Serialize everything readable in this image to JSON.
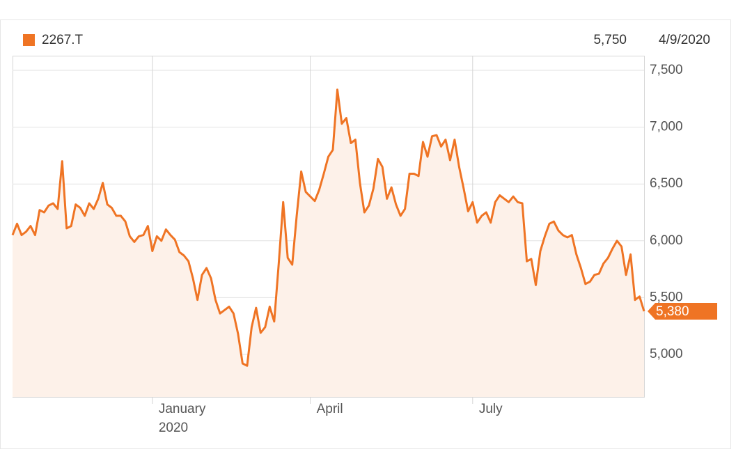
{
  "chart_data": {
    "type": "area",
    "series": [
      {
        "name": "2267.T",
        "color": "#ef7424",
        "fill": "#fdf1e9",
        "values": [
          6050,
          6150,
          6050,
          6080,
          6130,
          6050,
          6270,
          6250,
          6310,
          6330,
          6280,
          6700,
          6110,
          6130,
          6320,
          6290,
          6220,
          6330,
          6280,
          6370,
          6510,
          6320,
          6290,
          6220,
          6220,
          6170,
          6040,
          5990,
          6040,
          6050,
          6130,
          5910,
          6040,
          6000,
          6100,
          6050,
          6010,
          5900,
          5870,
          5820,
          5670,
          5480,
          5700,
          5760,
          5670,
          5480,
          5360,
          5390,
          5420,
          5360,
          5180,
          4920,
          4900,
          5240,
          5410,
          5190,
          5240,
          5420,
          5290,
          5790,
          6340,
          5850,
          5790,
          6220,
          6610,
          6430,
          6390,
          6350,
          6450,
          6590,
          6740,
          6800,
          7330,
          7030,
          7080,
          6860,
          6890,
          6510,
          6250,
          6310,
          6460,
          6720,
          6650,
          6370,
          6470,
          6320,
          6220,
          6280,
          6590,
          6590,
          6570,
          6870,
          6740,
          6920,
          6930,
          6830,
          6890,
          6710,
          6890,
          6650,
          6460,
          6260,
          6340,
          6160,
          6220,
          6250,
          6160,
          6340,
          6400,
          6370,
          6340,
          6390,
          6340,
          6330,
          5820,
          5840,
          5610,
          5910,
          6040,
          6150,
          6170,
          6090,
          6050,
          6030,
          6050,
          5880,
          5760,
          5620,
          5640,
          5700,
          5710,
          5800,
          5850,
          5930,
          6000,
          5950,
          5700,
          5880,
          5480,
          5510,
          5380
        ],
        "value_labels": [
          null,
          null,
          null,
          null,
          null,
          null,
          null,
          null,
          null,
          null,
          null,
          null,
          null,
          null,
          null,
          null,
          null,
          null,
          null,
          null,
          null,
          null,
          null,
          null,
          null,
          null,
          null,
          null,
          null,
          null,
          null,
          null,
          null,
          null,
          null,
          null,
          null,
          null,
          null,
          null,
          null,
          null,
          null,
          null,
          null,
          null,
          null,
          null,
          null,
          null,
          null,
          null,
          null,
          null,
          null,
          null,
          null,
          null,
          null,
          null,
          null,
          null,
          null,
          null,
          null,
          null,
          null,
          null,
          null,
          null,
          null,
          null,
          null,
          null,
          null,
          null,
          null,
          null,
          null,
          null,
          null,
          null,
          null,
          null,
          null,
          null,
          null,
          null,
          null,
          null,
          null,
          null,
          null,
          null,
          null,
          null,
          null,
          null,
          null,
          null,
          null,
          null,
          null,
          null,
          null,
          null,
          null,
          null,
          null,
          null,
          null,
          null,
          null,
          null,
          null,
          null,
          null,
          null,
          null,
          null,
          null,
          null,
          null,
          null,
          null,
          null,
          null,
          null,
          null,
          null,
          null,
          null,
          null,
          null,
          null,
          null,
          null,
          null,
          null,
          null,
          "5,380"
        ]
      }
    ],
    "categories": [
      null,
      null,
      null,
      null,
      null,
      null,
      null,
      null,
      null,
      null,
      null,
      null,
      null,
      null,
      null,
      null,
      null,
      null,
      null,
      null,
      null,
      null,
      null,
      null,
      null,
      null,
      null,
      null,
      null,
      null,
      null,
      "January 2020",
      null,
      null,
      null,
      null,
      null,
      null,
      null,
      null,
      null,
      null,
      null,
      null,
      null,
      null,
      null,
      null,
      null,
      null,
      null,
      null,
      null,
      null,
      null,
      null,
      null,
      null,
      null,
      null,
      null,
      null,
      null,
      null,
      null,
      null,
      "April",
      null,
      null,
      null,
      null,
      null,
      null,
      null,
      null,
      null,
      null,
      null,
      null,
      null,
      null,
      null,
      null,
      null,
      null,
      null,
      null,
      null,
      null,
      null,
      null,
      null,
      null,
      null,
      null,
      null,
      null,
      null,
      null,
      null,
      null,
      null,
      "July",
      null,
      null,
      null,
      null,
      null,
      null,
      null,
      null,
      null,
      null,
      null,
      null,
      null,
      null,
      null,
      null,
      null,
      null,
      null,
      null,
      null,
      null,
      null,
      null,
      null,
      null,
      null,
      null,
      null,
      null,
      null,
      null,
      null,
      null,
      null,
      null,
      null,
      null
    ],
    "ylim": [
      4626,
      7629
    ],
    "yticks": [
      {
        "value": 5000,
        "label": "5,000"
      },
      {
        "value": 5500,
        "label": "5,500"
      },
      {
        "value": 6000,
        "label": "6,000"
      },
      {
        "value": 6500,
        "label": "6,500"
      },
      {
        "value": 7000,
        "label": "7,000"
      },
      {
        "value": 7500,
        "label": "7,500"
      }
    ],
    "grid": true,
    "readout": {
      "value": "5,750",
      "date": "4/9/2020"
    }
  }
}
